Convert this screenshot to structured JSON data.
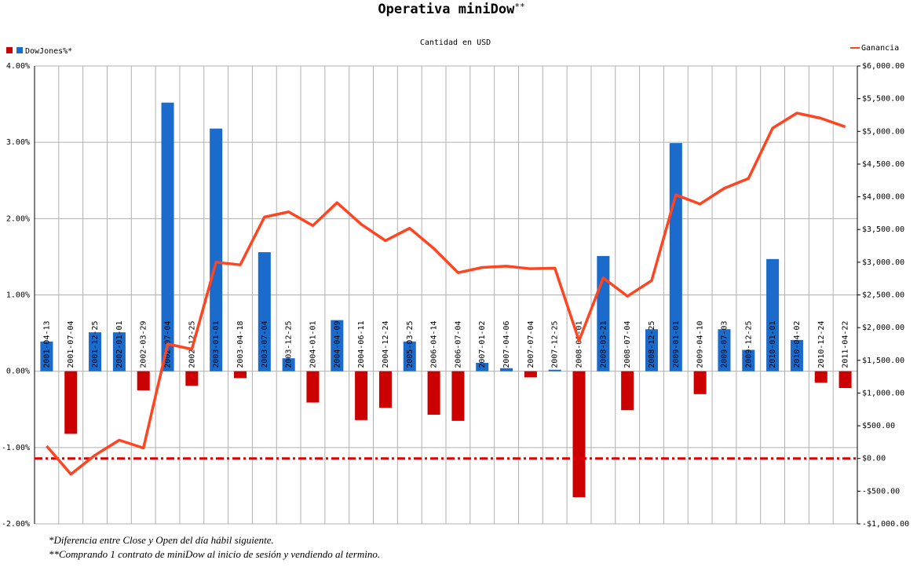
{
  "chart_data": {
    "type": "bar_line",
    "title": "Operativa miniDow",
    "title_suffix": "**",
    "subtitle": "Cantidad en USD",
    "categories": [
      "2001-04-13",
      "2001-07-04",
      "2001-12-25",
      "2002-01-01",
      "2002-03-29",
      "2002-07-04",
      "2002-12-25",
      "2003-01-01",
      "2003-04-18",
      "2003-07-04",
      "2003-12-25",
      "2004-01-01",
      "2004-04-09",
      "2004-06-11",
      "2004-12-24",
      "2005-03-25",
      "2006-04-14",
      "2006-07-04",
      "2007-01-02",
      "2007-04-06",
      "2007-07-04",
      "2007-12-25",
      "2008-01-01",
      "2008-03-21",
      "2008-07-04",
      "2008-12-25",
      "2009-01-01",
      "2009-04-10",
      "2009-07-03",
      "2009-12-25",
      "2010-01-01",
      "2010-04-02",
      "2010-12-24",
      "2011-04-22"
    ],
    "series": [
      {
        "name": "DowJones%*",
        "positive_color": "#1a6bcc",
        "negative_color": "#cc0000",
        "values": [
          0.39,
          -0.82,
          0.51,
          0.51,
          -0.25,
          3.52,
          -0.19,
          3.18,
          -0.09,
          1.56,
          0.17,
          -0.41,
          0.67,
          -0.64,
          -0.48,
          0.39,
          -0.57,
          -0.65,
          0.11,
          0.04,
          -0.08,
          0.02,
          -1.65,
          1.51,
          -0.51,
          0.55,
          2.99,
          -0.3,
          0.55,
          0.28,
          1.47,
          0.41,
          -0.15,
          -0.22
        ]
      },
      {
        "name": "Ganancia",
        "color": "#ff4422",
        "axis": "y2",
        "values": [
          190,
          -240,
          50,
          280,
          160,
          1750,
          1670,
          3000,
          2960,
          3690,
          3770,
          3560,
          3910,
          3580,
          3330,
          3520,
          3210,
          2840,
          2920,
          2940,
          2900,
          2910,
          1800,
          2760,
          2480,
          2720,
          4030,
          3890,
          4130,
          4280,
          5050,
          5280,
          5200,
          5070
        ]
      }
    ],
    "ylim": [
      -2,
      4
    ],
    "yticks": [
      {
        "value": 4,
        "label": "4.00%"
      },
      {
        "value": 3,
        "label": "3.00%"
      },
      {
        "value": 2,
        "label": "2.00%"
      },
      {
        "value": 1,
        "label": "1.00%"
      },
      {
        "value": 0,
        "label": "0.00%"
      },
      {
        "value": -1,
        "label": "-1.00%"
      },
      {
        "value": -2,
        "label": "-2.00%"
      }
    ],
    "y2lim": [
      -1000,
      6000
    ],
    "y2ticks": [
      {
        "value": 6000,
        "label": "$6,000.00"
      },
      {
        "value": 5500,
        "label": "$5,500.00"
      },
      {
        "value": 5000,
        "label": "$5,000.00"
      },
      {
        "value": 4500,
        "label": "$4,500.00"
      },
      {
        "value": 4000,
        "label": "$4,000.00"
      },
      {
        "value": 3500,
        "label": "$3,500.00"
      },
      {
        "value": 3000,
        "label": "$3,000.00"
      },
      {
        "value": 2500,
        "label": "$2,500.00"
      },
      {
        "value": 2000,
        "label": "$2,000.00"
      },
      {
        "value": 1500,
        "label": "$1,500.00"
      },
      {
        "value": 1000,
        "label": "$1,000.00"
      },
      {
        "value": 500,
        "label": "$500.00"
      },
      {
        "value": 0,
        "label": "$0.00"
      },
      {
        "value": -500,
        "label": "-$500.00"
      },
      {
        "value": -1000,
        "label": "-$1,000.00"
      }
    ],
    "y2_reference_line": 0,
    "reference_line_color": "#e00000",
    "grid": true,
    "footnotes": [
      "*Diferencia entre Close y Open del día hábil siguiente.",
      "**Comprando 1 contrato de miniDow al inicio de sesión y vendiendo al termino."
    ]
  }
}
